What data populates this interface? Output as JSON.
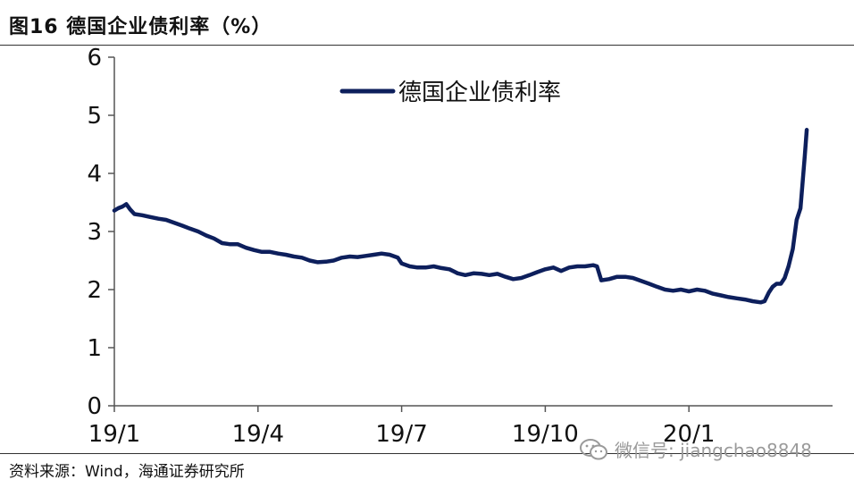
{
  "header": {
    "title": "图16 德国企业债利率（%）"
  },
  "footer": {
    "source": "资料来源：Wind，海通证券研究所"
  },
  "watermark": {
    "text": "微信号: jiangchao8848",
    "icon": "wechat-icon"
  },
  "colors": {
    "series": "#0d1f5c",
    "axis": "#555555",
    "text": "#111111"
  },
  "chart_data": {
    "type": "line",
    "title": "",
    "xlabel": "",
    "ylabel": "",
    "ylim": [
      0,
      6
    ],
    "yticks": [
      "0",
      "1",
      "2",
      "3",
      "4",
      "5",
      "6"
    ],
    "xticks": [
      {
        "label": "19/1",
        "x": 0
      },
      {
        "label": "19/4",
        "x": 3
      },
      {
        "label": "19/7",
        "x": 6
      },
      {
        "label": "19/10",
        "x": 9
      },
      {
        "label": "20/1",
        "x": 12
      }
    ],
    "xlim": [
      0,
      15
    ],
    "grid": false,
    "legend": {
      "position": "top-center",
      "entries": [
        "德国企业债利率"
      ]
    },
    "series": [
      {
        "name": "德国企业债利率",
        "points": [
          [
            0.0,
            3.36
          ],
          [
            0.08,
            3.4
          ],
          [
            0.17,
            3.43
          ],
          [
            0.25,
            3.47
          ],
          [
            0.33,
            3.38
          ],
          [
            0.42,
            3.3
          ],
          [
            0.58,
            3.28
          ],
          [
            0.75,
            3.25
          ],
          [
            0.92,
            3.22
          ],
          [
            1.08,
            3.2
          ],
          [
            1.25,
            3.15
          ],
          [
            1.42,
            3.1
          ],
          [
            1.58,
            3.05
          ],
          [
            1.75,
            3.0
          ],
          [
            1.92,
            2.93
          ],
          [
            2.08,
            2.88
          ],
          [
            2.25,
            2.8
          ],
          [
            2.42,
            2.78
          ],
          [
            2.58,
            2.78
          ],
          [
            2.75,
            2.72
          ],
          [
            2.92,
            2.68
          ],
          [
            3.08,
            2.65
          ],
          [
            3.25,
            2.65
          ],
          [
            3.42,
            2.62
          ],
          [
            3.58,
            2.6
          ],
          [
            3.75,
            2.57
          ],
          [
            3.92,
            2.55
          ],
          [
            4.08,
            2.5
          ],
          [
            4.25,
            2.47
          ],
          [
            4.42,
            2.48
          ],
          [
            4.58,
            2.5
          ],
          [
            4.75,
            2.55
          ],
          [
            4.92,
            2.57
          ],
          [
            5.08,
            2.56
          ],
          [
            5.25,
            2.58
          ],
          [
            5.42,
            2.6
          ],
          [
            5.58,
            2.62
          ],
          [
            5.75,
            2.6
          ],
          [
            5.92,
            2.55
          ],
          [
            6.0,
            2.45
          ],
          [
            6.17,
            2.4
          ],
          [
            6.33,
            2.38
          ],
          [
            6.5,
            2.38
          ],
          [
            6.67,
            2.4
          ],
          [
            6.83,
            2.37
          ],
          [
            7.0,
            2.35
          ],
          [
            7.17,
            2.28
          ],
          [
            7.33,
            2.25
          ],
          [
            7.5,
            2.28
          ],
          [
            7.67,
            2.27
          ],
          [
            7.83,
            2.25
          ],
          [
            8.0,
            2.27
          ],
          [
            8.17,
            2.22
          ],
          [
            8.33,
            2.18
          ],
          [
            8.5,
            2.2
          ],
          [
            8.67,
            2.25
          ],
          [
            8.83,
            2.3
          ],
          [
            9.0,
            2.35
          ],
          [
            9.17,
            2.38
          ],
          [
            9.33,
            2.32
          ],
          [
            9.5,
            2.38
          ],
          [
            9.67,
            2.4
          ],
          [
            9.83,
            2.4
          ],
          [
            10.0,
            2.42
          ],
          [
            10.08,
            2.4
          ],
          [
            10.17,
            2.16
          ],
          [
            10.33,
            2.18
          ],
          [
            10.5,
            2.22
          ],
          [
            10.67,
            2.22
          ],
          [
            10.83,
            2.2
          ],
          [
            11.0,
            2.15
          ],
          [
            11.17,
            2.1
          ],
          [
            11.33,
            2.05
          ],
          [
            11.5,
            2.0
          ],
          [
            11.67,
            1.98
          ],
          [
            11.83,
            2.0
          ],
          [
            12.0,
            1.97
          ],
          [
            12.17,
            2.0
          ],
          [
            12.33,
            1.98
          ],
          [
            12.5,
            1.93
          ],
          [
            12.67,
            1.9
          ],
          [
            12.83,
            1.87
          ],
          [
            13.0,
            1.85
          ],
          [
            13.17,
            1.83
          ],
          [
            13.33,
            1.8
          ],
          [
            13.5,
            1.78
          ],
          [
            13.58,
            1.8
          ],
          [
            13.67,
            1.95
          ],
          [
            13.75,
            2.05
          ],
          [
            13.83,
            2.1
          ],
          [
            13.92,
            2.1
          ],
          [
            14.0,
            2.2
          ],
          [
            14.08,
            2.4
          ],
          [
            14.17,
            2.7
          ],
          [
            14.25,
            3.2
          ],
          [
            14.33,
            3.4
          ],
          [
            14.42,
            4.3
          ],
          [
            14.46,
            4.75
          ]
        ]
      }
    ]
  }
}
